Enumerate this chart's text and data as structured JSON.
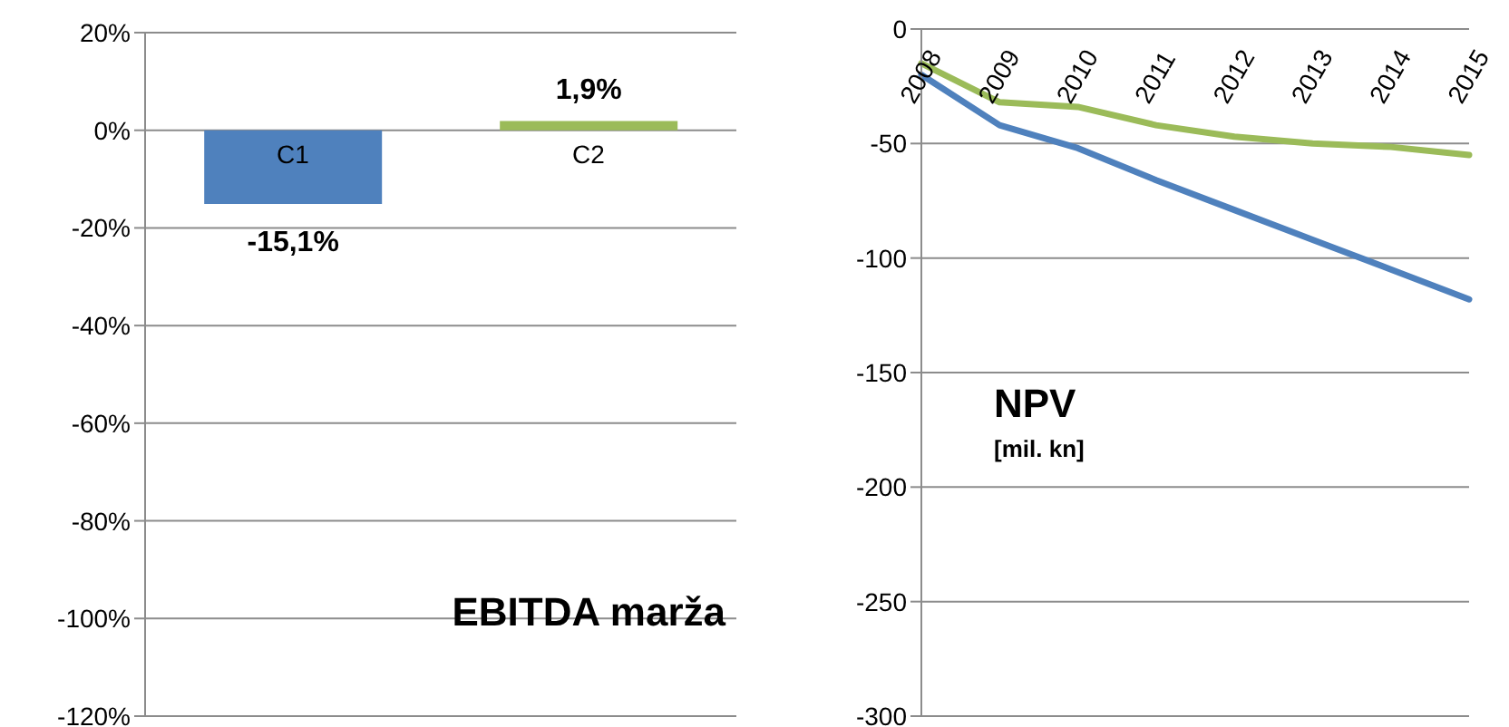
{
  "chart_data": [
    {
      "type": "bar",
      "categories": [
        "C1",
        "C2"
      ],
      "values": [
        -15.1,
        1.9
      ],
      "colors": [
        "#4f81bd",
        "#9bbb59"
      ],
      "value_labels": [
        "-15,1%",
        "1,9%"
      ],
      "ylim": [
        -120,
        20
      ],
      "yticks": [
        {
          "value": -120,
          "label": "-120%"
        },
        {
          "value": -100,
          "label": "-100%"
        },
        {
          "value": -80,
          "label": "-80%"
        },
        {
          "value": -60,
          "label": "-60%"
        },
        {
          "value": -40,
          "label": "-40%"
        },
        {
          "value": -20,
          "label": "-20%"
        },
        {
          "value": 0,
          "label": "0%"
        },
        {
          "value": 20,
          "label": "20%"
        }
      ],
      "grid": "y",
      "annotations": [
        "EBITDA marža"
      ]
    },
    {
      "type": "line",
      "categories": [
        "2008",
        "2009",
        "2010",
        "2011",
        "2012",
        "2013",
        "2014",
        "2015"
      ],
      "series": [
        {
          "color": "#4f81bd",
          "values": [
            -20,
            -42,
            -52,
            -66,
            -79,
            -92,
            -105,
            -118
          ]
        },
        {
          "color": "#9bbb59",
          "values": [
            -15,
            -32,
            -34,
            -42,
            -47,
            -50,
            -51.5,
            -55
          ]
        }
      ],
      "ylim": [
        -300,
        0
      ],
      "yticks": [
        -300,
        -250,
        -200,
        -150,
        -100,
        -50,
        0
      ],
      "grid": "y",
      "annotations": [
        "NPV",
        "[mil. kn]"
      ]
    }
  ]
}
